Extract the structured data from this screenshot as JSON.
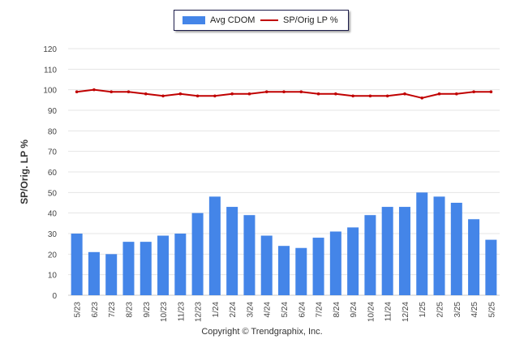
{
  "legend": {
    "bar_label": "Avg CDOM",
    "line_label": "SP/Orig LP %"
  },
  "footer": {
    "copyright": "Copyright © Trendgraphix, Inc."
  },
  "colors": {
    "bar": "#4485e8",
    "line": "#c00000",
    "grid": "#e4e4e4",
    "text": "#444444"
  },
  "chart_data": {
    "type": "bar",
    "ylabel": "SP/Orig. LP %",
    "xlabel": "",
    "ylim": [
      0,
      120
    ],
    "yticks": [
      0,
      10,
      20,
      30,
      40,
      50,
      60,
      70,
      80,
      90,
      100,
      110,
      120
    ],
    "grid": true,
    "legend_position": "top-center",
    "categories": [
      "5/23",
      "6/23",
      "7/23",
      "8/23",
      "9/23",
      "10/23",
      "11/23",
      "12/23",
      "1/24",
      "2/24",
      "3/24",
      "4/24",
      "5/24",
      "6/24",
      "7/24",
      "8/24",
      "9/24",
      "10/24",
      "11/24",
      "12/24",
      "1/25",
      "2/25",
      "3/25",
      "4/25",
      "5/25"
    ],
    "series": [
      {
        "name": "Avg CDOM",
        "type": "bar",
        "values": [
          30,
          21,
          20,
          26,
          26,
          29,
          30,
          40,
          48,
          43,
          39,
          29,
          24,
          23,
          28,
          31,
          33,
          39,
          43,
          43,
          50,
          48,
          45,
          37,
          27
        ]
      },
      {
        "name": "SP/Orig LP %",
        "type": "line",
        "values": [
          99,
          100,
          99,
          99,
          98,
          97,
          98,
          97,
          97,
          98,
          98,
          99,
          99,
          99,
          98,
          98,
          97,
          97,
          97,
          98,
          96,
          98,
          98,
          99,
          99
        ]
      }
    ]
  }
}
